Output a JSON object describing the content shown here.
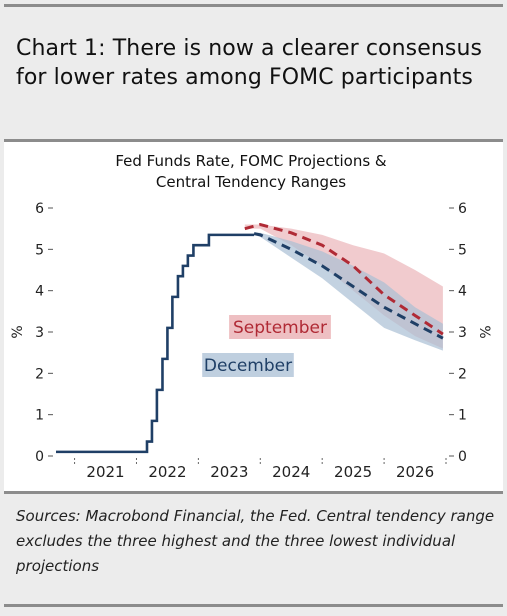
{
  "headline": "Chart 1: There is now a clearer consensus for lower rates among FOMC participants",
  "sources": "Sources: Macrobond Financial, the Fed. Central tendency range excludes the three highest and the three lowest individual projections",
  "colors": {
    "december": "#1f3f66",
    "september": "#b02a35",
    "fed_funds": "#1f3f66",
    "september_band": "#e8a9ae",
    "december_band": "#a9bfd4"
  },
  "chart_data": {
    "type": "line",
    "title": "Fed Funds Rate, FOMC Projections & Central Tendency Ranges",
    "ylabel": "%",
    "ylabel_right": "%",
    "ylim": [
      0,
      6
    ],
    "yticks": [
      0,
      1,
      2,
      3,
      4,
      5,
      6
    ],
    "xlim": [
      2020.7,
      2027.0
    ],
    "xticks": [
      "2021",
      "2022",
      "2023",
      "2024",
      "2025",
      "2026"
    ],
    "grid": false,
    "labels": [
      {
        "text": "September",
        "series": "September"
      },
      {
        "text": "December",
        "series": "December"
      }
    ],
    "series": [
      {
        "name": "Fed Funds Rate",
        "style": "solid",
        "step": true,
        "x": [
          2020.7,
          2022.17,
          2022.25,
          2022.33,
          2022.42,
          2022.5,
          2022.58,
          2022.67,
          2022.75,
          2022.83,
          2022.92,
          2023.0,
          2023.08,
          2023.17,
          2023.25,
          2023.42,
          2023.58,
          2023.9
        ],
        "y": [
          0.1,
          0.35,
          0.85,
          1.6,
          2.35,
          3.1,
          3.85,
          4.35,
          4.6,
          4.85,
          5.1,
          5.1,
          5.1,
          5.35,
          5.35,
          5.35,
          5.35,
          5.35
        ]
      },
      {
        "name": "September",
        "style": "dashed",
        "x": [
          2023.75,
          2024.0,
          2024.5,
          2025.0,
          2025.5,
          2026.0,
          2026.5,
          2026.95
        ],
        "y": [
          5.5,
          5.6,
          5.4,
          5.1,
          4.6,
          3.9,
          3.4,
          2.95
        ],
        "range_low": [
          5.5,
          5.5,
          5.1,
          4.6,
          4.0,
          3.4,
          2.9,
          2.6
        ],
        "range_high": [
          5.6,
          5.6,
          5.5,
          5.35,
          5.1,
          4.9,
          4.5,
          4.1
        ]
      },
      {
        "name": "December",
        "style": "dashed",
        "x": [
          2023.9,
          2024.0,
          2024.5,
          2025.0,
          2025.5,
          2026.0,
          2026.5,
          2026.95
        ],
        "y": [
          5.38,
          5.35,
          5.0,
          4.6,
          4.1,
          3.6,
          3.2,
          2.85
        ],
        "range_low": [
          5.35,
          5.3,
          4.8,
          4.3,
          3.7,
          3.1,
          2.8,
          2.55
        ],
        "range_high": [
          5.4,
          5.4,
          5.2,
          4.95,
          4.6,
          4.2,
          3.6,
          3.2
        ]
      }
    ]
  }
}
